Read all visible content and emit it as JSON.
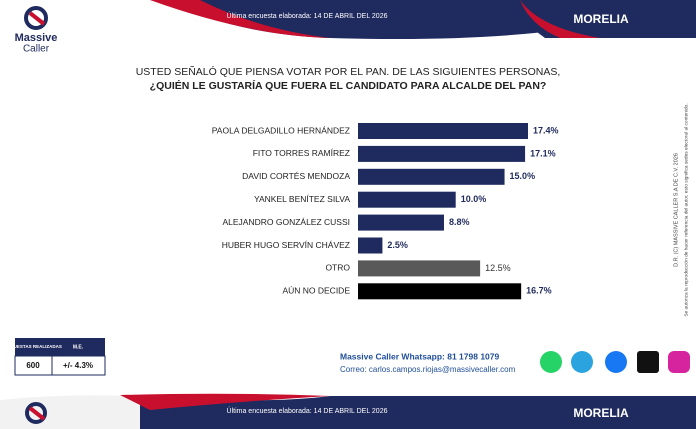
{
  "header": {
    "brand_lines": [
      "Massive",
      "Caller"
    ],
    "survey_date": "Última encuesta elaborada: 14 DE ABRIL DEL 2026",
    "region": "MORELIA"
  },
  "chart_data": {
    "type": "bar",
    "orientation": "horizontal",
    "title": "USTED SEÑALÓ QUE PIENSA VOTAR POR EL PAN. DE LAS SIGUIENTES PERSONAS,",
    "subtitle": "¿QUIÉN LE GUSTARÍA QUE FUERA EL CANDIDATO PARA ALCALDE DEL PAN?",
    "categories": [
      "PAOLA DELGADILLO HERNÁNDEZ",
      "FITO TORRES RAMÍREZ",
      "DAVID CORTÉS MENDOZA",
      "YANKEL BENÍTEZ SILVA",
      "ALEJANDRO GONZÁLEZ CUSSI",
      "HUBER HUGO SERVÍN CHÁVEZ",
      "OTRO",
      "AÚN NO DECIDE"
    ],
    "values": [
      17.4,
      17.1,
      15.0,
      10.0,
      8.8,
      2.5,
      12.5,
      16.7
    ],
    "value_labels": [
      "17.4%",
      "17.1%",
      "15.0%",
      "10.0%",
      "8.8%",
      "2.5%",
      "12.5%",
      "16.7%"
    ],
    "colors": [
      "#1f2a5e",
      "#1f2a5e",
      "#1f2a5e",
      "#1f2a5e",
      "#1f2a5e",
      "#1f2a5e",
      "#595959",
      "#000000"
    ]
  },
  "legal": [
    "D.R. (C) MASSIVE CALLER S.A DE C.V. 2026",
    "Se autoriza la reproducción de hacer referencia del autor, esto significa sedes electoral al contenido."
  ],
  "sample_table": {
    "headers": [
      "ENCUESTAS REALIZADAS",
      "M.E."
    ],
    "rows": [
      [
        "600",
        "+/- 4.3%"
      ]
    ]
  },
  "contact": {
    "whatsapp": "Massive Caller Whatsapp: 81 1798 1079",
    "email": "Correo: carlos.campos.riojas@massivecaller.com"
  }
}
